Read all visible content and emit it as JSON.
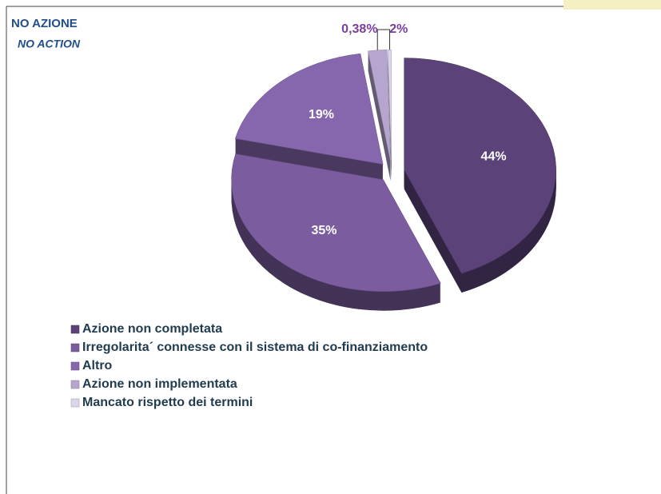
{
  "chart_data": {
    "type": "pie",
    "title": "NO AZIONE",
    "subtitle": "NO ACTION",
    "categories": [
      "Azione non completata",
      "Irregolarita´ connesse con il sistema di co-finanziamento",
      "Altro",
      "Azione non implementata",
      "Mancato rispetto dei termini"
    ],
    "values": [
      44,
      35,
      19,
      2,
      0.38
    ],
    "value_labels": [
      "44%",
      "35%",
      "19%",
      "2%",
      "0,38%"
    ],
    "colors": [
      "#5b4279",
      "#7a5c9f",
      "#8667ad",
      "#b6a6cf",
      "#dcd4ea"
    ]
  }
}
